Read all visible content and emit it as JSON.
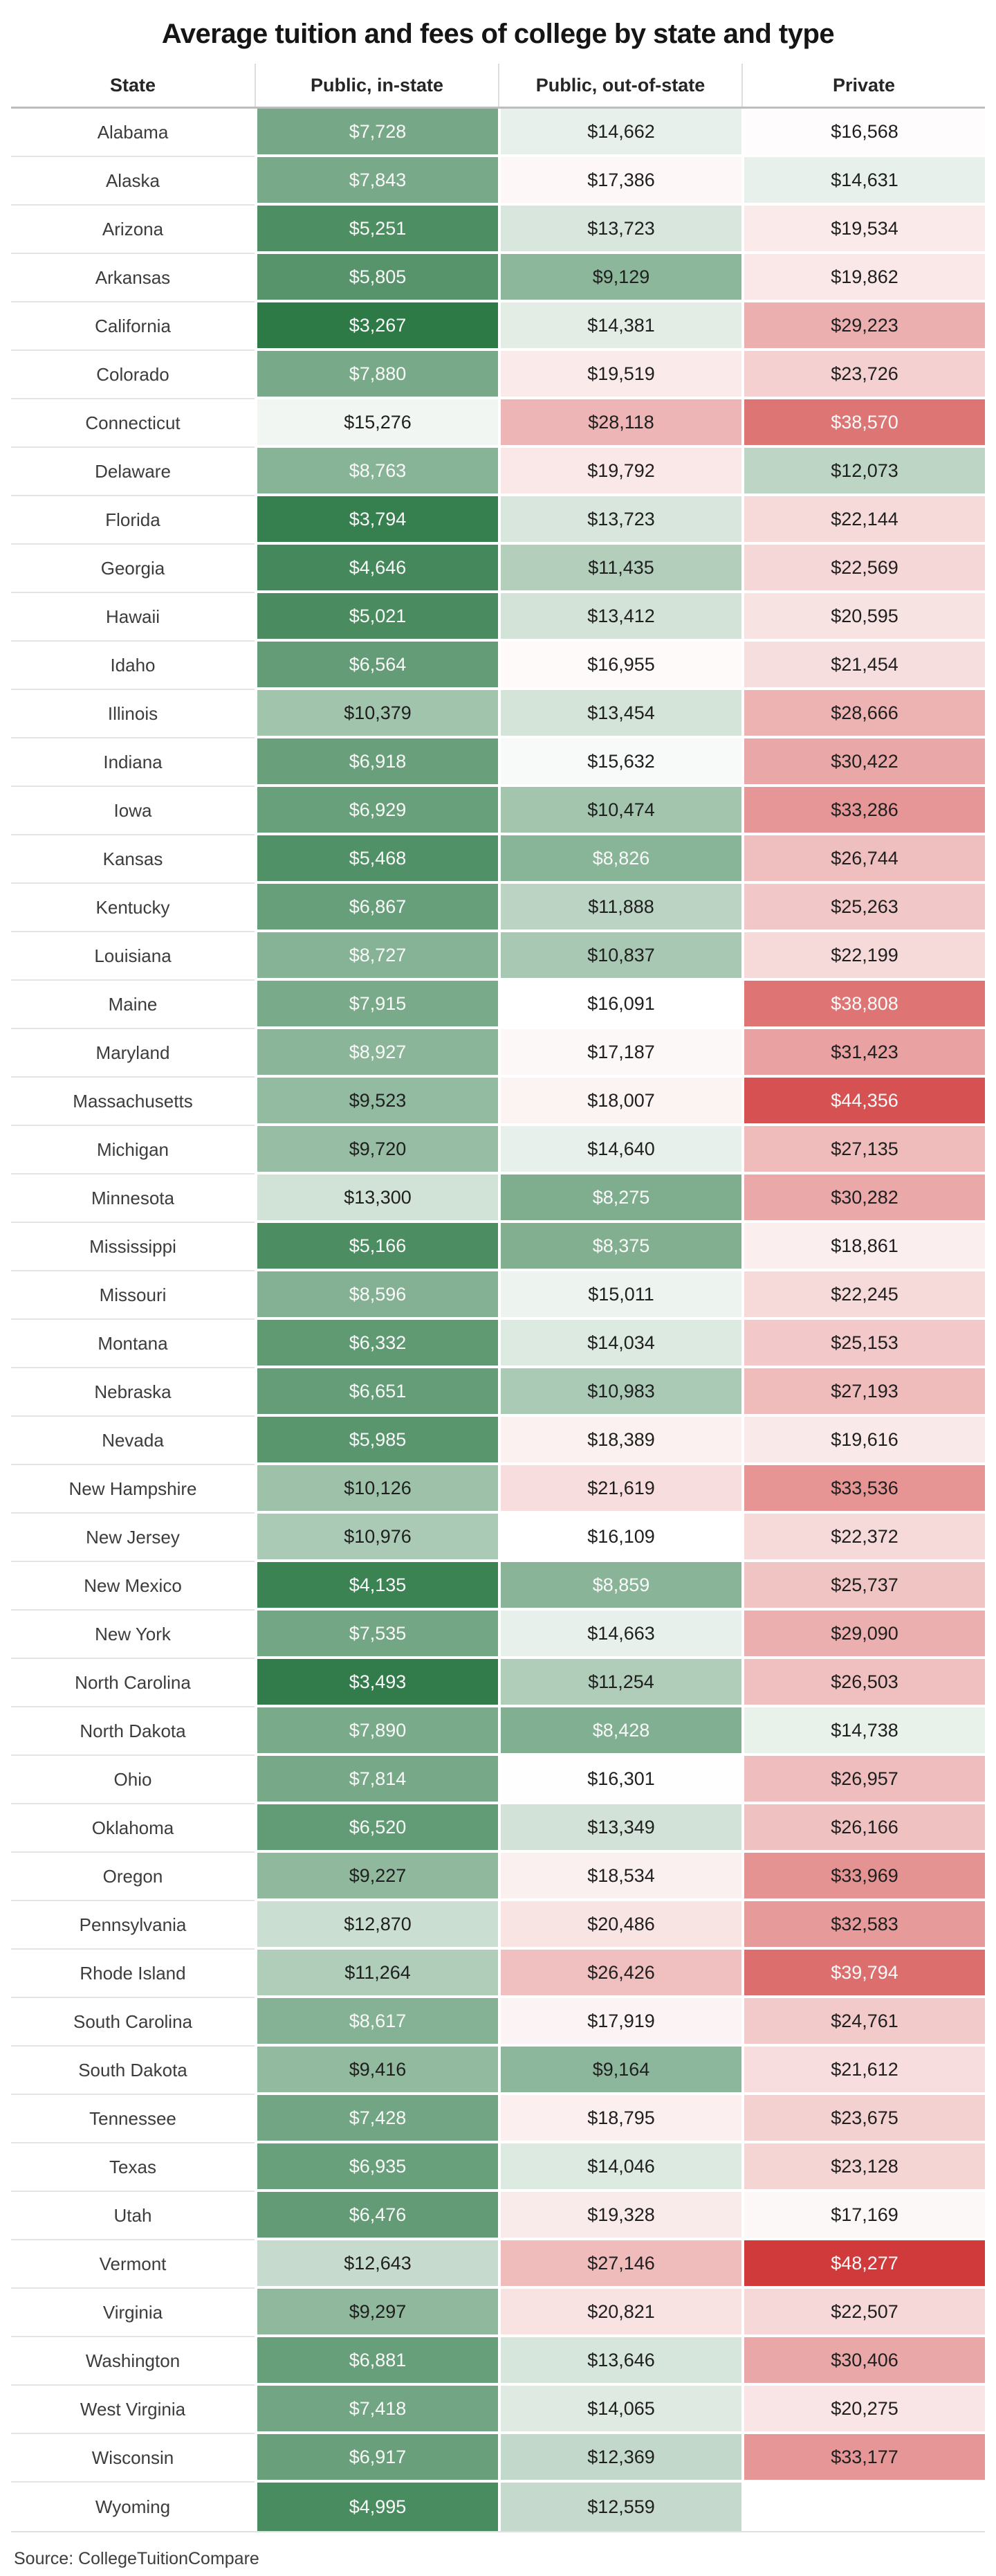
{
  "title": "Average tuition and fees of college by state and type",
  "source_note": "Source: CollegeTuitionCompare",
  "chart_data": {
    "type": "heatmap",
    "title": "Average tuition and fees of college by state and type",
    "columns": [
      "State",
      "Public, in-state",
      "Public, out-of-state",
      "Private"
    ],
    "value_format": "$#,##0",
    "legend_position": "none",
    "grid": false,
    "color_scale": {
      "min_value": 3267,
      "mid_value": 16100,
      "max_value": 48277,
      "green": "#2d7a47",
      "white": "#ffffff",
      "red": "#d03a3a",
      "white_text_below": 9000,
      "white_text_above": 36000,
      "dark_text": "#1f1f1f",
      "light_text": "#fafafa"
    },
    "rows": [
      {
        "state": "Alabama",
        "values": [
          7728,
          14662,
          16568
        ]
      },
      {
        "state": "Alaska",
        "values": [
          7843,
          17386,
          14631
        ]
      },
      {
        "state": "Arizona",
        "values": [
          5251,
          13723,
          19534
        ]
      },
      {
        "state": "Arkansas",
        "values": [
          5805,
          9129,
          19862
        ]
      },
      {
        "state": "California",
        "values": [
          3267,
          14381,
          29223
        ]
      },
      {
        "state": "Colorado",
        "values": [
          7880,
          19519,
          23726
        ]
      },
      {
        "state": "Connecticut",
        "values": [
          15276,
          28118,
          38570
        ]
      },
      {
        "state": "Delaware",
        "values": [
          8763,
          19792,
          12073
        ]
      },
      {
        "state": "Florida",
        "values": [
          3794,
          13723,
          22144
        ]
      },
      {
        "state": "Georgia",
        "values": [
          4646,
          11435,
          22569
        ]
      },
      {
        "state": "Hawaii",
        "values": [
          5021,
          13412,
          20595
        ]
      },
      {
        "state": "Idaho",
        "values": [
          6564,
          16955,
          21454
        ]
      },
      {
        "state": "Illinois",
        "values": [
          10379,
          13454,
          28666
        ]
      },
      {
        "state": "Indiana",
        "values": [
          6918,
          15632,
          30422
        ]
      },
      {
        "state": "Iowa",
        "values": [
          6929,
          10474,
          33286
        ]
      },
      {
        "state": "Kansas",
        "values": [
          5468,
          8826,
          26744
        ]
      },
      {
        "state": "Kentucky",
        "values": [
          6867,
          11888,
          25263
        ]
      },
      {
        "state": "Louisiana",
        "values": [
          8727,
          10837,
          22199
        ]
      },
      {
        "state": "Maine",
        "values": [
          7915,
          16091,
          38808
        ]
      },
      {
        "state": "Maryland",
        "values": [
          8927,
          17187,
          31423
        ]
      },
      {
        "state": "Massachusetts",
        "values": [
          9523,
          18007,
          44356
        ]
      },
      {
        "state": "Michigan",
        "values": [
          9720,
          14640,
          27135
        ]
      },
      {
        "state": "Minnesota",
        "values": [
          13300,
          8275,
          30282
        ]
      },
      {
        "state": "Mississippi",
        "values": [
          5166,
          8375,
          18861
        ]
      },
      {
        "state": "Missouri",
        "values": [
          8596,
          15011,
          22245
        ]
      },
      {
        "state": "Montana",
        "values": [
          6332,
          14034,
          25153
        ]
      },
      {
        "state": "Nebraska",
        "values": [
          6651,
          10983,
          27193
        ]
      },
      {
        "state": "Nevada",
        "values": [
          5985,
          18389,
          19616
        ]
      },
      {
        "state": "New Hampshire",
        "values": [
          10126,
          21619,
          33536
        ]
      },
      {
        "state": "New Jersey",
        "values": [
          10976,
          16109,
          22372
        ]
      },
      {
        "state": "New Mexico",
        "values": [
          4135,
          8859,
          25737
        ]
      },
      {
        "state": "New York",
        "values": [
          7535,
          14663,
          29090
        ]
      },
      {
        "state": "North Carolina",
        "values": [
          3493,
          11254,
          26503
        ]
      },
      {
        "state": "North Dakota",
        "values": [
          7890,
          8428,
          14738
        ]
      },
      {
        "state": "Ohio",
        "values": [
          7814,
          16301,
          26957
        ]
      },
      {
        "state": "Oklahoma",
        "values": [
          6520,
          13349,
          26166
        ]
      },
      {
        "state": "Oregon",
        "values": [
          9227,
          18534,
          33969
        ]
      },
      {
        "state": "Pennsylvania",
        "values": [
          12870,
          20486,
          32583
        ]
      },
      {
        "state": "Rhode Island",
        "values": [
          11264,
          26426,
          39794
        ]
      },
      {
        "state": "South Carolina",
        "values": [
          8617,
          17919,
          24761
        ]
      },
      {
        "state": "South Dakota",
        "values": [
          9416,
          9164,
          21612
        ]
      },
      {
        "state": "Tennessee",
        "values": [
          7428,
          18795,
          23675
        ]
      },
      {
        "state": "Texas",
        "values": [
          6935,
          14046,
          23128
        ]
      },
      {
        "state": "Utah",
        "values": [
          6476,
          19328,
          17169
        ]
      },
      {
        "state": "Vermont",
        "values": [
          12643,
          27146,
          48277
        ]
      },
      {
        "state": "Virginia",
        "values": [
          9297,
          20821,
          22507
        ]
      },
      {
        "state": "Washington",
        "values": [
          6881,
          13646,
          30406
        ]
      },
      {
        "state": "West Virginia",
        "values": [
          7418,
          14065,
          20275
        ]
      },
      {
        "state": "Wisconsin",
        "values": [
          6917,
          12369,
          33177
        ]
      },
      {
        "state": "Wyoming",
        "values": [
          4995,
          12559,
          null
        ]
      }
    ]
  }
}
